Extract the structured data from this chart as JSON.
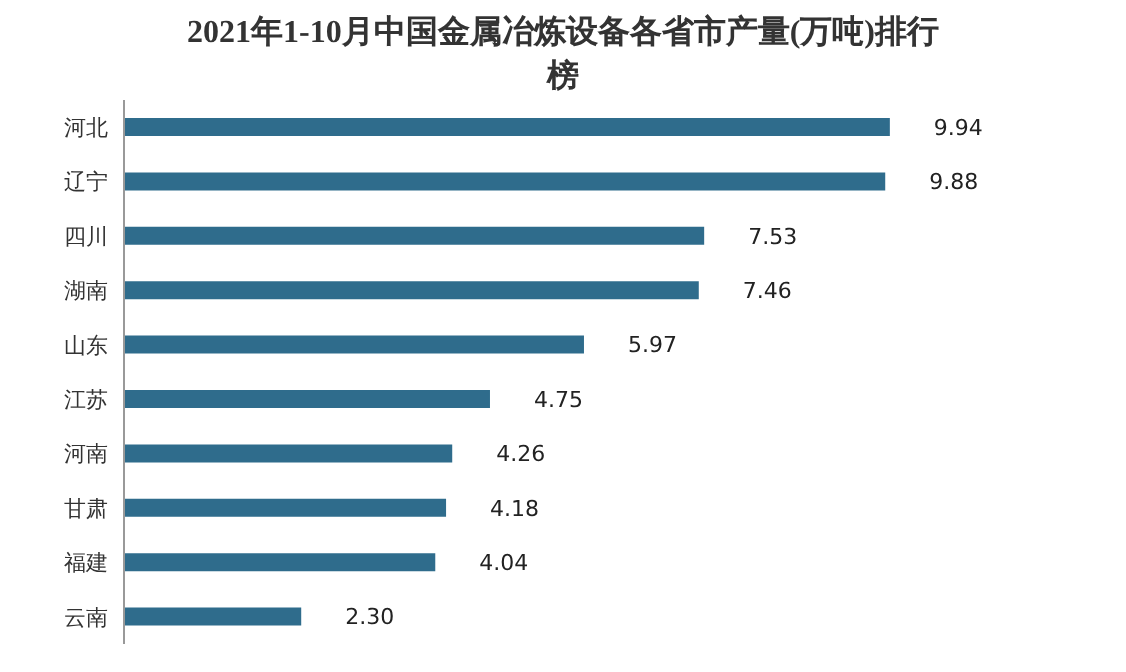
{
  "chart_data": {
    "type": "bar",
    "orientation": "horizontal",
    "title": "2021年1-10月中国金属冶炼设备各省市产量(万吨)排行榜",
    "categories": [
      "河北",
      "辽宁",
      "四川",
      "湖南",
      "山东",
      "江苏",
      "河南",
      "甘肃",
      "福建",
      "云南"
    ],
    "values": [
      9.94,
      9.88,
      7.53,
      7.46,
      5.97,
      4.75,
      4.26,
      4.18,
      4.04,
      2.3
    ],
    "value_labels": [
      "9.94",
      "9.88",
      "7.53",
      "7.46",
      "5.97",
      "4.75",
      "4.26",
      "4.18",
      "4.04",
      "2.30"
    ],
    "color": "#2f6c8c",
    "grid": false,
    "legend": false
  }
}
